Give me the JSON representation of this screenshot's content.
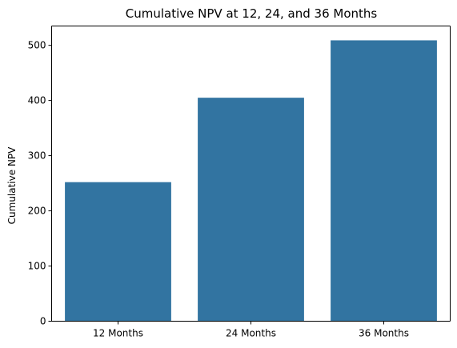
{
  "chart_data": {
    "type": "bar",
    "title": "Cumulative NPV at 12, 24, and 36 Months",
    "xlabel": "",
    "ylabel": "Cumulative NPV",
    "categories": [
      "12 Months",
      "24 Months",
      "36 Months"
    ],
    "values": [
      252,
      405,
      509
    ],
    "ylim": [
      0,
      535
    ],
    "yticks": [
      "0",
      "100",
      "200",
      "300",
      "400",
      "500"
    ],
    "bar_color": "#3274a1",
    "grid": false,
    "legend": "none"
  }
}
